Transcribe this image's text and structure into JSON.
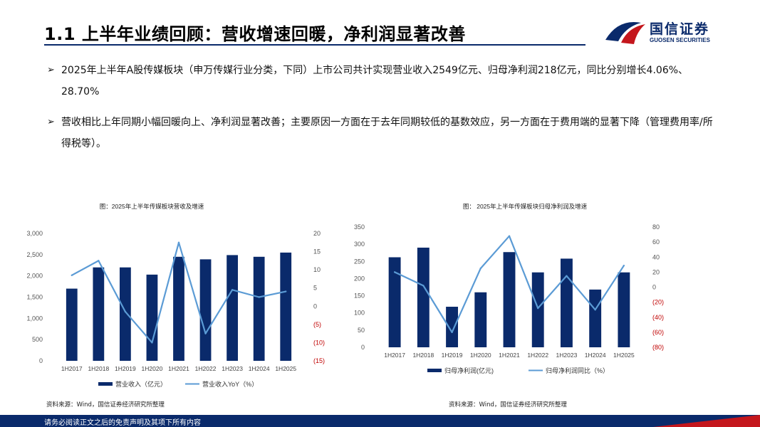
{
  "title": "1.1 上半年业绩回顾：营收增速回暖，净利润显著改善",
  "logo": {
    "cn": "国信证券",
    "en": "GUOSEN SECURITIES"
  },
  "bullets": [
    "2025年上半年A股传媒板块（申万传媒行业分类，下同）上市公司共计实现营业收入2549亿元、归母净利润218亿元，同比分别增长4.06%、28.70%",
    "营收相比上年同期小幅回暖向上、净利润显著改善；主要原因一方面在于去年同期较低的基数效应，另一方面在于费用端的显著下降（管理费用率/所得税等）。"
  ],
  "colors": {
    "bar": "#0a2a6b",
    "line": "#5b9bd5",
    "negative": "#c00000"
  },
  "chart_data": [
    {
      "type": "bar",
      "title": "图：2025年上半年传媒板块营收及增速",
      "categories": [
        "1H2017",
        "1H2018",
        "1H2019",
        "1H2020",
        "1H2021",
        "1H2022",
        "1H2023",
        "1H2024",
        "1H2025"
      ],
      "series": [
        {
          "name": "营业收入（亿元）",
          "type": "bar",
          "axis": "left",
          "values": [
            1700,
            2200,
            2200,
            2030,
            2450,
            2390,
            2490,
            2450,
            2549
          ]
        },
        {
          "name": "营业收入YoY（%）",
          "type": "line",
          "axis": "right",
          "values": [
            8.5,
            12.5,
            -1.5,
            -10,
            17.5,
            -7.5,
            4.5,
            2.5,
            4.06
          ]
        }
      ],
      "ylim_left": [
        0,
        3000
      ],
      "yticks_left": [
        "0",
        "500",
        "1,000",
        "1,500",
        "2,000",
        "2,500",
        "3,000"
      ],
      "ylim_right": [
        -15,
        20
      ],
      "yticks_right": [
        "(15)",
        "(10)",
        "(5)",
        "0",
        "5",
        "10",
        "15",
        "20"
      ],
      "legend": "bottom",
      "source": "资料来源：Wind，国信证券经济研究所整理"
    },
    {
      "type": "bar",
      "title": "图： 2025年上半年传媒板块归母净利润及增速",
      "categories": [
        "1H2017",
        "1H2018",
        "1H2019",
        "1H2020",
        "1H2021",
        "1H2022",
        "1H2023",
        "1H2024",
        "1H2025"
      ],
      "series": [
        {
          "name": "归母净利润(亿元)",
          "type": "bar",
          "axis": "left",
          "values": [
            262,
            290,
            118,
            160,
            277,
            218,
            258,
            168,
            218
          ]
        },
        {
          "name": "归母净利润同比（%）",
          "type": "line",
          "axis": "right",
          "values": [
            20,
            2,
            -60,
            25,
            68,
            -28,
            15,
            -30,
            28.7
          ]
        }
      ],
      "ylim_left": [
        0,
        350
      ],
      "yticks_left": [
        "0",
        "50",
        "100",
        "150",
        "200",
        "250",
        "300",
        "350"
      ],
      "ylim_right": [
        -80,
        80
      ],
      "yticks_right": [
        "(80)",
        "(60)",
        "(40)",
        "(20)",
        "0",
        "20",
        "40",
        "60",
        "80"
      ],
      "legend": "bottom",
      "source": "资料来源：Wind，国信证券经济研究所整理"
    }
  ],
  "footer": "请务必阅读正文之后的免责声明及其项下所有内容"
}
